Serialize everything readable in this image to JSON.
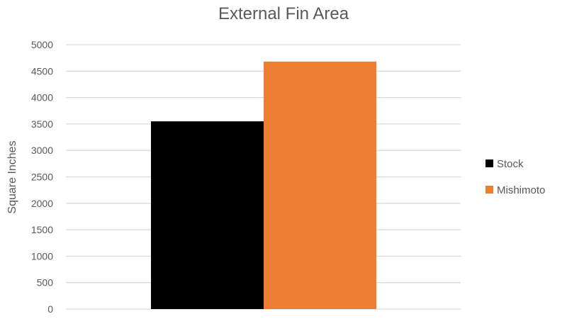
{
  "chart_data": {
    "type": "bar",
    "title": "External Fin Area",
    "xlabel": "",
    "ylabel": "Square Inches",
    "categories": [
      ""
    ],
    "series": [
      {
        "name": "Stock",
        "values": [
          3550
        ],
        "color": "#000000"
      },
      {
        "name": "Mishimoto",
        "values": [
          4680
        ],
        "color": "#ED7D31"
      }
    ],
    "ylim": [
      0,
      5000
    ],
    "yticks": [
      0,
      500,
      1000,
      1500,
      2000,
      2500,
      3000,
      3500,
      4000,
      4500,
      5000
    ],
    "grid": true,
    "legend": "right"
  }
}
